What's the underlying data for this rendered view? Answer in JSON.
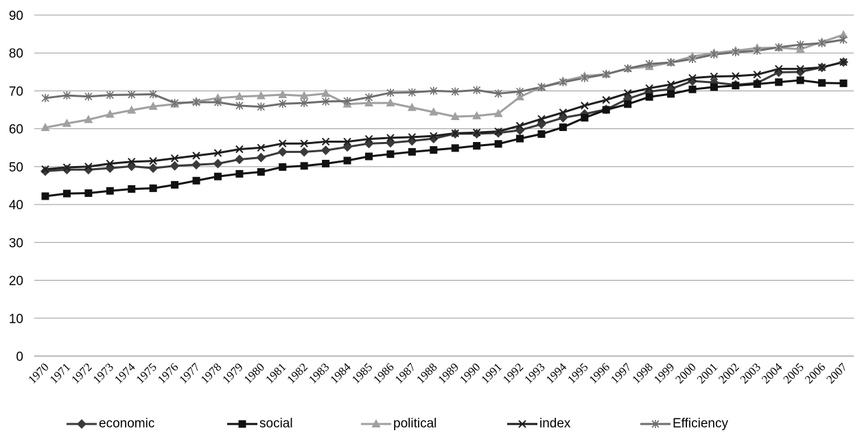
{
  "chart_data": {
    "type": "line",
    "title": "",
    "xlabel": "",
    "ylabel": "",
    "ylim": [
      0,
      90
    ],
    "yticks": [
      0,
      10,
      20,
      30,
      40,
      50,
      60,
      70,
      80,
      90
    ],
    "grid": "horizontal",
    "legend_position": "bottom",
    "x": [
      "1970",
      "1971",
      "1972",
      "1973",
      "1974",
      "1975",
      "1976",
      "1977",
      "1978",
      "1979",
      "1980",
      "1981",
      "1982",
      "1983",
      "1984",
      "1985",
      "1986",
      "1987",
      "1988",
      "1989",
      "1990",
      "1991",
      "1992",
      "1993",
      "1994",
      "1995",
      "1996",
      "1997",
      "1998",
      "1999",
      "2000",
      "2001",
      "2002",
      "2003",
      "2004",
      "2005",
      "2006",
      "2007"
    ],
    "series": [
      {
        "name": "economic",
        "color": "#3a3a3a",
        "marker": "diamond",
        "values": [
          48.8,
          49.2,
          49.2,
          49.6,
          50.1,
          49.6,
          50.2,
          50.5,
          50.8,
          51.9,
          52.4,
          53.9,
          53.9,
          54.3,
          55.2,
          56.1,
          56.3,
          56.8,
          57.4,
          58.7,
          58.7,
          58.9,
          59.6,
          61.2,
          62.9,
          63.9,
          65.1,
          67.9,
          69.8,
          70.5,
          72.6,
          72.2,
          71.6,
          72.1,
          74.9,
          75.0,
          76.2,
          77.6
        ]
      },
      {
        "name": "social",
        "color": "#111111",
        "marker": "square",
        "values": [
          42.2,
          42.9,
          43.0,
          43.6,
          44.1,
          44.3,
          45.2,
          46.3,
          47.4,
          48.1,
          48.6,
          49.9,
          50.2,
          50.8,
          51.6,
          52.7,
          53.3,
          53.9,
          54.4,
          54.9,
          55.5,
          56.0,
          57.4,
          58.6,
          60.4,
          62.9,
          65.0,
          66.5,
          68.4,
          69.2,
          70.4,
          71.0,
          71.4,
          71.8,
          72.3,
          72.8,
          72.1,
          72.0
        ]
      },
      {
        "name": "political",
        "color": "#a0a0a0",
        "marker": "triangle",
        "values": [
          60.3,
          61.4,
          62.4,
          63.8,
          64.9,
          65.9,
          66.5,
          67.2,
          68.1,
          68.5,
          68.7,
          69.0,
          68.7,
          69.3,
          66.5,
          66.8,
          66.8,
          65.6,
          64.4,
          63.2,
          63.4,
          64.0,
          68.4,
          71.0,
          72.6,
          73.9,
          74.4,
          75.9,
          76.4,
          77.5,
          79.1,
          80.0,
          80.6,
          81.3,
          81.4,
          81.0,
          82.9,
          84.8
        ]
      },
      {
        "name": "index",
        "color": "#1e1e1e",
        "marker": "x",
        "values": [
          49.3,
          49.8,
          50.0,
          50.8,
          51.3,
          51.5,
          52.2,
          52.9,
          53.6,
          54.6,
          55.0,
          56.1,
          56.1,
          56.6,
          56.6,
          57.3,
          57.6,
          57.8,
          58.1,
          58.8,
          59.0,
          59.3,
          60.8,
          62.6,
          64.3,
          66.1,
          67.6,
          69.4,
          70.7,
          71.7,
          73.4,
          73.8,
          73.9,
          74.3,
          75.8,
          75.8,
          76.2,
          77.6
        ]
      },
      {
        "name": "Efficiency",
        "color": "#6e6e6e",
        "marker": "asterisk",
        "values": [
          68.1,
          68.8,
          68.5,
          68.9,
          69.0,
          69.1,
          66.8,
          67.0,
          67.0,
          66.1,
          65.8,
          66.6,
          66.8,
          67.2,
          67.3,
          68.3,
          69.5,
          69.6,
          70.0,
          69.8,
          70.2,
          69.3,
          69.8,
          71.0,
          72.3,
          73.4,
          74.4,
          75.9,
          77.1,
          77.5,
          78.4,
          79.6,
          80.2,
          80.6,
          81.5,
          82.2,
          82.6,
          83.5
        ]
      }
    ]
  }
}
